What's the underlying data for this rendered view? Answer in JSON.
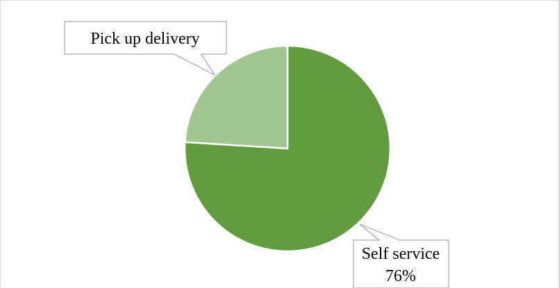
{
  "chart_data": {
    "type": "pie",
    "slices": [
      {
        "label": "Self service",
        "value": 76,
        "color": "#629c3f",
        "data_label": "76%"
      },
      {
        "label": "Pick up delivery",
        "value": 24,
        "color": "#a3c592",
        "data_label": ""
      }
    ],
    "start_angle_deg": 0,
    "direction": "clockwise",
    "legend": "none",
    "outline_color": "#ffffff"
  },
  "callouts": {
    "pick_up": {
      "name": "Pick up delivery"
    },
    "self_service": {
      "name": "Self service",
      "value": "76%"
    }
  }
}
